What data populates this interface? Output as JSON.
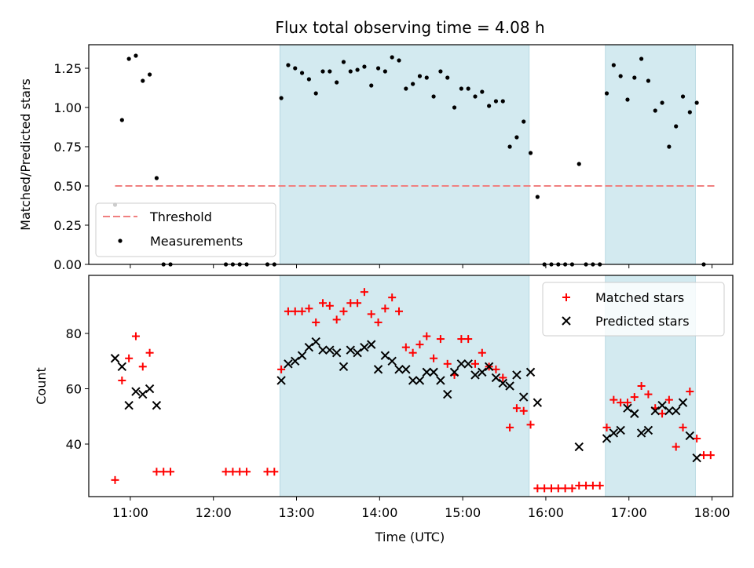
{
  "chart_data": {
    "title": "Flux total observing time = 4.08 h",
    "xlabel": "Time (UTC)",
    "x_ticks": [
      "11:00",
      "12:00",
      "13:00",
      "14:00",
      "15:00",
      "16:00",
      "17:00",
      "18:00"
    ],
    "x_range": [
      "10:30",
      "18:15"
    ],
    "observing_windows": [
      {
        "start": "12:48",
        "end": "15:48"
      },
      {
        "start": "16:43",
        "end": "17:48"
      }
    ],
    "colors": {
      "window": "#d3eaf0",
      "threshold": "#f08080",
      "measurements": "#000000",
      "matched": "#ff0000",
      "predicted": "#000000"
    },
    "panels": [
      {
        "type": "scatter",
        "ylabel": "Matched/Predicted stars",
        "ylim": [
          0,
          1.4
        ],
        "y_ticks": [
          "0.00",
          "0.25",
          "0.50",
          "0.75",
          "1.00",
          "1.25"
        ],
        "legend_position": "lower-left",
        "threshold": {
          "name": "Threshold",
          "value": 0.5,
          "x_start": "10:49",
          "x_end": "18:03"
        },
        "series": [
          {
            "name": "Measurements",
            "points": [
              [
                "10:49",
                0.38
              ],
              [
                "10:54",
                0.92
              ],
              [
                "10:59",
                1.31
              ],
              [
                "11:04",
                1.33
              ],
              [
                "11:09",
                1.17
              ],
              [
                "11:14",
                1.21
              ],
              [
                "11:19",
                0.55
              ],
              [
                "11:24",
                0.0
              ],
              [
                "11:29",
                0.0
              ],
              [
                "12:09",
                0.0
              ],
              [
                "12:14",
                0.0
              ],
              [
                "12:19",
                0.0
              ],
              [
                "12:24",
                0.0
              ],
              [
                "12:39",
                0.0
              ],
              [
                "12:44",
                0.0
              ],
              [
                "12:49",
                1.06
              ],
              [
                "12:54",
                1.27
              ],
              [
                "12:59",
                1.25
              ],
              [
                "13:04",
                1.22
              ],
              [
                "13:09",
                1.18
              ],
              [
                "13:14",
                1.09
              ],
              [
                "13:19",
                1.23
              ],
              [
                "13:24",
                1.23
              ],
              [
                "13:29",
                1.16
              ],
              [
                "13:34",
                1.29
              ],
              [
                "13:39",
                1.23
              ],
              [
                "13:44",
                1.24
              ],
              [
                "13:49",
                1.26
              ],
              [
                "13:54",
                1.14
              ],
              [
                "13:59",
                1.25
              ],
              [
                "14:04",
                1.23
              ],
              [
                "14:09",
                1.32
              ],
              [
                "14:14",
                1.3
              ],
              [
                "14:19",
                1.12
              ],
              [
                "14:24",
                1.15
              ],
              [
                "14:29",
                1.2
              ],
              [
                "14:34",
                1.19
              ],
              [
                "14:39",
                1.07
              ],
              [
                "14:44",
                1.23
              ],
              [
                "14:49",
                1.19
              ],
              [
                "14:54",
                1.0
              ],
              [
                "14:59",
                1.12
              ],
              [
                "15:04",
                1.12
              ],
              [
                "15:09",
                1.07
              ],
              [
                "15:14",
                1.1
              ],
              [
                "15:19",
                1.01
              ],
              [
                "15:24",
                1.04
              ],
              [
                "15:29",
                1.04
              ],
              [
                "15:34",
                0.75
              ],
              [
                "15:39",
                0.81
              ],
              [
                "15:44",
                0.91
              ],
              [
                "15:49",
                0.71
              ],
              [
                "15:54",
                0.43
              ],
              [
                "15:59",
                0.0
              ],
              [
                "16:04",
                0.0
              ],
              [
                "16:09",
                0.0
              ],
              [
                "16:14",
                0.0
              ],
              [
                "16:19",
                0.0
              ],
              [
                "16:24",
                0.64
              ],
              [
                "16:29",
                0.0
              ],
              [
                "16:34",
                0.0
              ],
              [
                "16:39",
                0.0
              ],
              [
                "16:44",
                1.09
              ],
              [
                "16:49",
                1.27
              ],
              [
                "16:54",
                1.2
              ],
              [
                "16:59",
                1.05
              ],
              [
                "17:04",
                1.19
              ],
              [
                "17:09",
                1.31
              ],
              [
                "17:14",
                1.17
              ],
              [
                "17:19",
                0.98
              ],
              [
                "17:24",
                1.03
              ],
              [
                "17:29",
                0.75
              ],
              [
                "17:34",
                0.88
              ],
              [
                "17:39",
                1.07
              ],
              [
                "17:44",
                0.97
              ],
              [
                "17:49",
                1.03
              ],
              [
                "17:54",
                0.0
              ]
            ]
          }
        ]
      },
      {
        "type": "scatter",
        "ylabel": "Count",
        "ylim": [
          21,
          101
        ],
        "y_ticks": [
          "40",
          "60",
          "80"
        ],
        "legend_position": "top-right",
        "series": [
          {
            "name": "Matched stars",
            "marker": "+",
            "points": [
              [
                "10:49",
                27
              ],
              [
                "10:54",
                63
              ],
              [
                "10:59",
                71
              ],
              [
                "11:04",
                79
              ],
              [
                "11:09",
                68
              ],
              [
                "11:14",
                73
              ],
              [
                "11:19",
                30
              ],
              [
                "11:24",
                30
              ],
              [
                "11:29",
                30
              ],
              [
                "12:09",
                30
              ],
              [
                "12:14",
                30
              ],
              [
                "12:19",
                30
              ],
              [
                "12:24",
                30
              ],
              [
                "12:39",
                30
              ],
              [
                "12:44",
                30
              ],
              [
                "12:49",
                67
              ],
              [
                "12:54",
                88
              ],
              [
                "12:59",
                88
              ],
              [
                "13:04",
                88
              ],
              [
                "13:09",
                89
              ],
              [
                "13:14",
                84
              ],
              [
                "13:19",
                91
              ],
              [
                "13:24",
                90
              ],
              [
                "13:29",
                85
              ],
              [
                "13:34",
                88
              ],
              [
                "13:39",
                91
              ],
              [
                "13:44",
                91
              ],
              [
                "13:49",
                95
              ],
              [
                "13:54",
                87
              ],
              [
                "13:59",
                84
              ],
              [
                "14:04",
                89
              ],
              [
                "14:09",
                93
              ],
              [
                "14:14",
                88
              ],
              [
                "14:19",
                75
              ],
              [
                "14:24",
                73
              ],
              [
                "14:29",
                76
              ],
              [
                "14:34",
                79
              ],
              [
                "14:39",
                71
              ],
              [
                "14:44",
                78
              ],
              [
                "14:49",
                69
              ],
              [
                "14:54",
                65
              ],
              [
                "14:59",
                78
              ],
              [
                "15:04",
                78
              ],
              [
                "15:09",
                69
              ],
              [
                "15:14",
                73
              ],
              [
                "15:19",
                68
              ],
              [
                "15:24",
                67
              ],
              [
                "15:29",
                64
              ],
              [
                "15:34",
                46
              ],
              [
                "15:39",
                53
              ],
              [
                "15:44",
                52
              ],
              [
                "15:49",
                47
              ],
              [
                "15:54",
                24
              ],
              [
                "15:59",
                24
              ],
              [
                "16:04",
                24
              ],
              [
                "16:09",
                24
              ],
              [
                "16:14",
                24
              ],
              [
                "16:19",
                24
              ],
              [
                "16:24",
                25
              ],
              [
                "16:29",
                25
              ],
              [
                "16:34",
                25
              ],
              [
                "16:39",
                25
              ],
              [
                "16:44",
                46
              ],
              [
                "16:49",
                56
              ],
              [
                "16:54",
                55
              ],
              [
                "16:59",
                55
              ],
              [
                "17:04",
                57
              ],
              [
                "17:09",
                61
              ],
              [
                "17:14",
                58
              ],
              [
                "17:19",
                53
              ],
              [
                "17:24",
                51
              ],
              [
                "17:29",
                56
              ],
              [
                "17:34",
                39
              ],
              [
                "17:39",
                46
              ],
              [
                "17:44",
                59
              ],
              [
                "17:49",
                42
              ],
              [
                "17:54",
                36
              ],
              [
                "17:59",
                36
              ]
            ]
          },
          {
            "name": "Predicted stars",
            "marker": "x",
            "points": [
              [
                "10:49",
                71
              ],
              [
                "10:54",
                68
              ],
              [
                "10:59",
                54
              ],
              [
                "11:04",
                59
              ],
              [
                "11:09",
                58
              ],
              [
                "11:14",
                60
              ],
              [
                "11:19",
                54
              ],
              [
                "12:49",
                63
              ],
              [
                "12:54",
                69
              ],
              [
                "12:59",
                70
              ],
              [
                "13:04",
                72
              ],
              [
                "13:09",
                75
              ],
              [
                "13:14",
                77
              ],
              [
                "13:19",
                74
              ],
              [
                "13:24",
                74
              ],
              [
                "13:29",
                73
              ],
              [
                "13:34",
                68
              ],
              [
                "13:39",
                74
              ],
              [
                "13:44",
                73
              ],
              [
                "13:49",
                75
              ],
              [
                "13:54",
                76
              ],
              [
                "13:59",
                67
              ],
              [
                "14:04",
                72
              ],
              [
                "14:09",
                70
              ],
              [
                "14:14",
                67
              ],
              [
                "14:19",
                67
              ],
              [
                "14:24",
                63
              ],
              [
                "14:29",
                63
              ],
              [
                "14:34",
                66
              ],
              [
                "14:39",
                66
              ],
              [
                "14:44",
                63
              ],
              [
                "14:49",
                58
              ],
              [
                "14:54",
                66
              ],
              [
                "14:59",
                69
              ],
              [
                "15:04",
                69
              ],
              [
                "15:09",
                65
              ],
              [
                "15:14",
                66
              ],
              [
                "15:19",
                68
              ],
              [
                "15:24",
                64
              ],
              [
                "15:29",
                62
              ],
              [
                "15:34",
                61
              ],
              [
                "15:39",
                65
              ],
              [
                "15:44",
                57
              ],
              [
                "15:49",
                66
              ],
              [
                "15:54",
                55
              ],
              [
                "16:24",
                39
              ],
              [
                "16:44",
                42
              ],
              [
                "16:49",
                44
              ],
              [
                "16:54",
                45
              ],
              [
                "16:59",
                53
              ],
              [
                "17:04",
                51
              ],
              [
                "17:09",
                44
              ],
              [
                "17:14",
                45
              ],
              [
                "17:19",
                52
              ],
              [
                "17:24",
                54
              ],
              [
                "17:29",
                52
              ],
              [
                "17:34",
                52
              ],
              [
                "17:39",
                55
              ],
              [
                "17:44",
                43
              ],
              [
                "17:49",
                35
              ]
            ]
          }
        ]
      }
    ]
  }
}
